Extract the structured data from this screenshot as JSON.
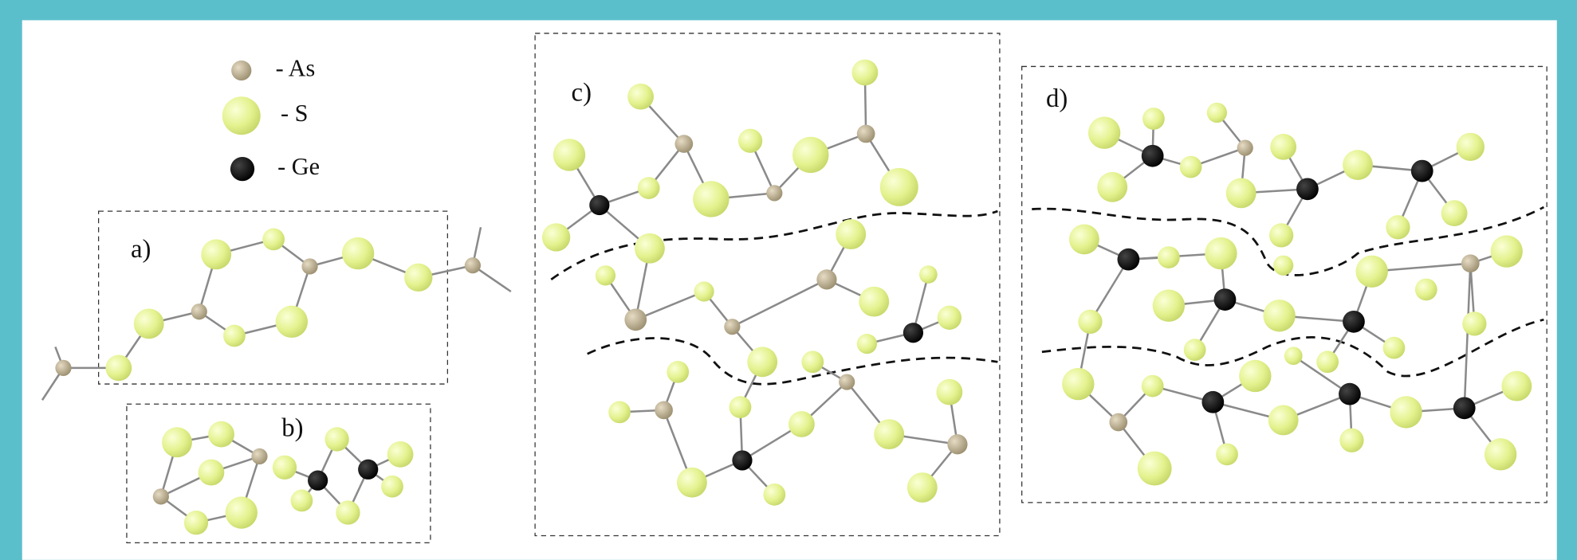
{
  "legend": [
    {
      "label": "- As"
    },
    {
      "label": "- S"
    },
    {
      "label": "- Ge"
    }
  ],
  "panels": [
    {
      "label": "a)"
    },
    {
      "label": "b)"
    },
    {
      "label": "c)"
    },
    {
      "label": "d)"
    }
  ]
}
